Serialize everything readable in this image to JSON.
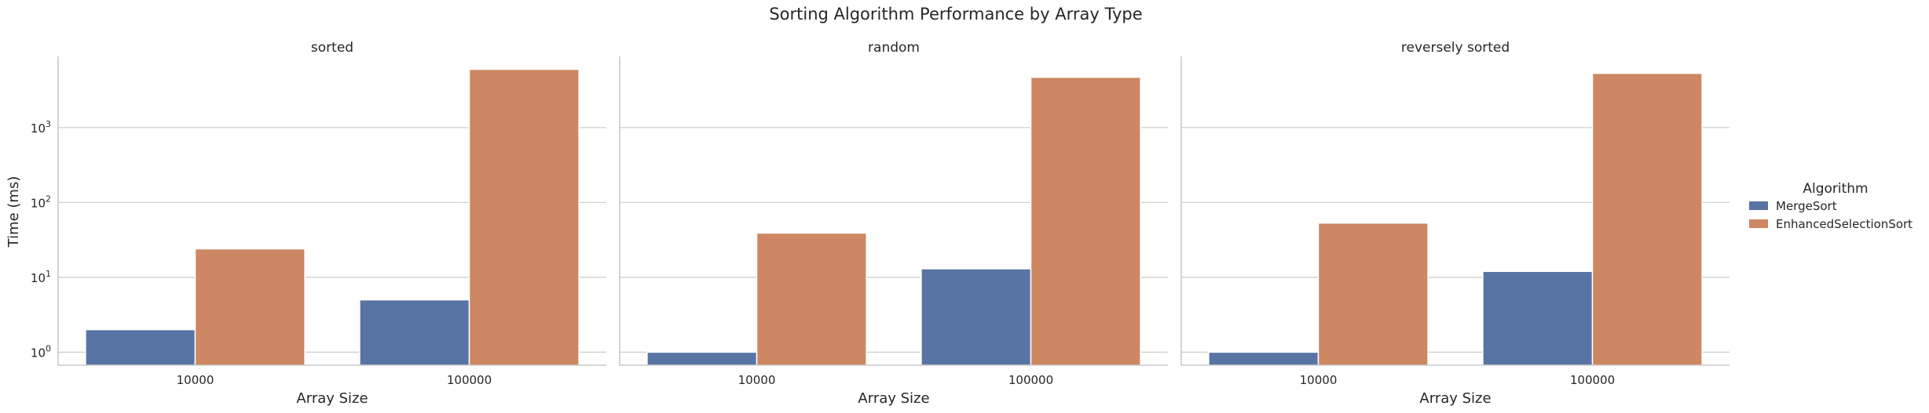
{
  "chart_data": {
    "type": "bar",
    "title": "Sorting Algorithm Performance by Array Type",
    "xlabel": "Array Size",
    "ylabel": "Time (ms)",
    "yscale": "log",
    "ylim": [
      0.67,
      8500
    ],
    "yticks": [
      {
        "value": 1,
        "base": "10",
        "exp": "0"
      },
      {
        "value": 10,
        "base": "10",
        "exp": "1"
      },
      {
        "value": 100,
        "base": "10",
        "exp": "2"
      },
      {
        "value": 1000,
        "base": "10",
        "exp": "3"
      }
    ],
    "grid": true,
    "legend": {
      "title": "Algorithm",
      "placement": "right"
    },
    "categories": [
      "10000",
      "100000"
    ],
    "series_styles": [
      {
        "name": "MergeSort",
        "color": "#5874a5"
      },
      {
        "name": "EnhancedSelectionSort",
        "color": "#cd8762"
      }
    ],
    "facets": [
      {
        "title": "sorted",
        "series": [
          {
            "name": "MergeSort",
            "values": [
              2,
              5
            ]
          },
          {
            "name": "EnhancedSelectionSort",
            "values": [
              24,
              6000
            ]
          }
        ]
      },
      {
        "title": "random",
        "series": [
          {
            "name": "MergeSort",
            "values": [
              1,
              13
            ]
          },
          {
            "name": "EnhancedSelectionSort",
            "values": [
              39,
              4700
            ]
          }
        ]
      },
      {
        "title": "reversely sorted",
        "series": [
          {
            "name": "MergeSort",
            "values": [
              1,
              12
            ]
          },
          {
            "name": "EnhancedSelectionSort",
            "values": [
              53,
              5300
            ]
          }
        ]
      }
    ]
  }
}
